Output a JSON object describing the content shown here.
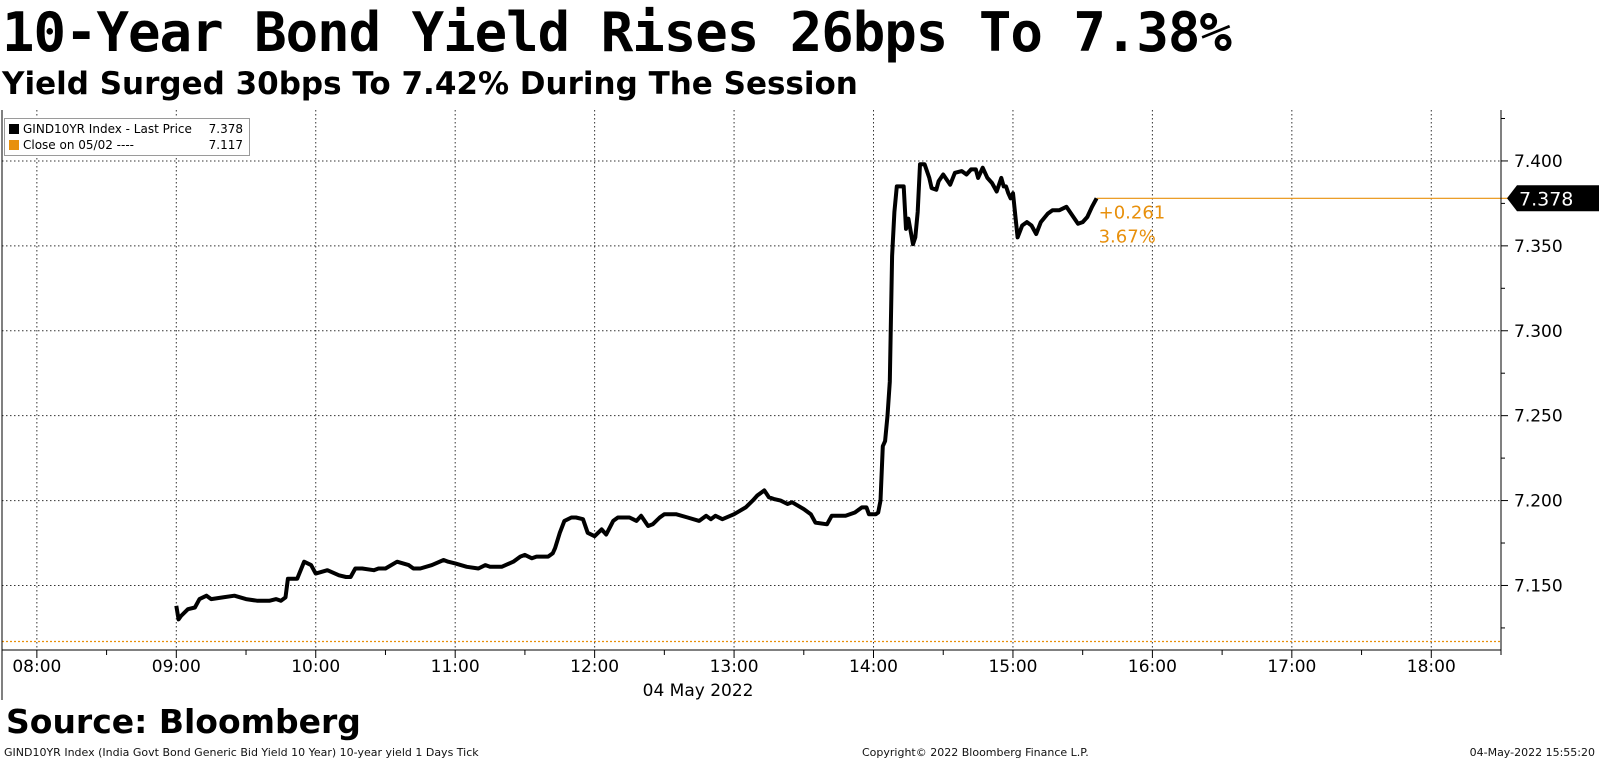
{
  "title": "10-Year Bond Yield Rises 26bps To 7.38%",
  "subtitle": "Yield Surged 30bps To 7.42% During The Session",
  "source": "Source: Bloomberg",
  "footer": {
    "left": "GIND10YR Index (India Govt Bond Generic Bid Yield 10 Year) 10-year yield 1 Days  Tick",
    "center": "Copyright© 2022 Bloomberg Finance L.P.",
    "right": "04-May-2022 15:55:20"
  },
  "legend": [
    {
      "label": "GIND10YR Index - Last Price",
      "value": "7.378",
      "color": "#000000"
    },
    {
      "label": "Close on 05/02 ----",
      "value": "7.117",
      "color": "#e8900c"
    }
  ],
  "colors": {
    "series": "#000000",
    "reference": "#e8900c",
    "grid": "#333333"
  },
  "chart_data": {
    "type": "line",
    "date_label": "04 May 2022",
    "x_ticks": [
      "08:00",
      "09:00",
      "10:00",
      "11:00",
      "12:00",
      "13:00",
      "14:00",
      "15:00",
      "16:00",
      "17:00",
      "18:00"
    ],
    "x_range": [
      "07:45",
      "18:30"
    ],
    "y_ticks": [
      "7.150",
      "7.200",
      "7.250",
      "7.300",
      "7.350",
      "7.400"
    ],
    "ylim": [
      7.112,
      7.43
    ],
    "grid": true,
    "legend_position": "top-left",
    "last_price_label": "7.378",
    "change_label": "+0.261",
    "change_pct_label": "3.67%",
    "reference": {
      "name": "Close on 05/02",
      "value": 7.117
    },
    "series": [
      {
        "name": "GIND10YR Index - Last Price",
        "x": [
          "09:00",
          "09:01",
          "09:02",
          "09:05",
          "09:08",
          "09:10",
          "09:13",
          "09:15",
          "09:20",
          "09:25",
          "09:30",
          "09:35",
          "09:40",
          "09:43",
          "09:45",
          "09:47",
          "09:48",
          "09:52",
          "09:55",
          "09:58",
          "10:00",
          "10:05",
          "10:10",
          "10:13",
          "10:15",
          "10:17",
          "10:20",
          "10:25",
          "10:27",
          "10:30",
          "10:35",
          "10:40",
          "10:42",
          "10:45",
          "10:50",
          "10:55",
          "10:57",
          "11:00",
          "11:05",
          "11:10",
          "11:13",
          "11:15",
          "11:20",
          "11:25",
          "11:28",
          "11:30",
          "11:33",
          "11:35",
          "11:37",
          "11:40",
          "11:42",
          "11:43",
          "11:45",
          "11:47",
          "11:50",
          "11:52",
          "11:55",
          "11:57",
          "12:00",
          "12:03",
          "12:05",
          "12:08",
          "12:10",
          "12:15",
          "12:18",
          "12:20",
          "12:23",
          "12:25",
          "12:28",
          "12:30",
          "12:35",
          "12:40",
          "12:45",
          "12:48",
          "12:50",
          "12:52",
          "12:55",
          "13:00",
          "13:05",
          "13:08",
          "13:10",
          "13:13",
          "13:15",
          "13:17",
          "13:20",
          "13:23",
          "13:25",
          "13:30",
          "13:33",
          "13:35",
          "13:40",
          "13:42",
          "13:45",
          "13:48",
          "13:52",
          "13:55",
          "13:57",
          "13:58",
          "14:00",
          "14:01",
          "14:02",
          "14:03",
          "14:04",
          "14:05",
          "14:06",
          "14:07",
          "14:08",
          "14:09",
          "14:10",
          "14:13",
          "14:14",
          "14:15",
          "14:17",
          "14:18",
          "14:19",
          "14:20",
          "14:22",
          "14:24",
          "14:25",
          "14:27",
          "14:28",
          "14:30",
          "14:33",
          "14:35",
          "14:38",
          "14:40",
          "14:42",
          "14:44",
          "14:45",
          "14:47",
          "14:49",
          "14:51",
          "14:53",
          "14:55",
          "14:56",
          "14:57",
          "14:58",
          "14:59",
          "15:00",
          "15:02",
          "15:04",
          "15:06",
          "15:08",
          "15:10",
          "15:12",
          "15:15",
          "15:17",
          "15:20",
          "15:23",
          "15:25",
          "15:28",
          "15:30",
          "15:32",
          "15:34",
          "15:36"
        ],
        "values": [
          7.138,
          7.13,
          7.132,
          7.136,
          7.137,
          7.142,
          7.144,
          7.142,
          7.143,
          7.144,
          7.142,
          7.141,
          7.141,
          7.142,
          7.141,
          7.143,
          7.154,
          7.154,
          7.164,
          7.162,
          7.157,
          7.159,
          7.156,
          7.155,
          7.155,
          7.16,
          7.16,
          7.159,
          7.16,
          7.16,
          7.164,
          7.162,
          7.16,
          7.16,
          7.162,
          7.165,
          7.164,
          7.163,
          7.161,
          7.16,
          7.162,
          7.161,
          7.161,
          7.164,
          7.167,
          7.168,
          7.166,
          7.167,
          7.167,
          7.167,
          7.169,
          7.172,
          7.181,
          7.188,
          7.19,
          7.19,
          7.189,
          7.181,
          7.179,
          7.183,
          7.18,
          7.188,
          7.19,
          7.19,
          7.188,
          7.191,
          7.185,
          7.186,
          7.19,
          7.192,
          7.192,
          7.19,
          7.188,
          7.191,
          7.189,
          7.191,
          7.189,
          7.192,
          7.196,
          7.2,
          7.203,
          7.206,
          7.202,
          7.201,
          7.2,
          7.198,
          7.199,
          7.195,
          7.192,
          7.187,
          7.186,
          7.191,
          7.191,
          7.191,
          7.193,
          7.196,
          7.196,
          7.192,
          7.192,
          7.192,
          7.193,
          7.2,
          7.232,
          7.235,
          7.25,
          7.27,
          7.344,
          7.37,
          7.385,
          7.385,
          7.36,
          7.366,
          7.351,
          7.355,
          7.37,
          7.398,
          7.398,
          7.39,
          7.384,
          7.383,
          7.388,
          7.392,
          7.386,
          7.393,
          7.394,
          7.392,
          7.395,
          7.395,
          7.39,
          7.396,
          7.39,
          7.387,
          7.382,
          7.39,
          7.385,
          7.385,
          7.381,
          7.378,
          7.381,
          7.355,
          7.362,
          7.364,
          7.362,
          7.357,
          7.364,
          7.369,
          7.371,
          7.371,
          7.373,
          7.369,
          7.363,
          7.364,
          7.367,
          7.373,
          7.378
        ]
      }
    ]
  }
}
